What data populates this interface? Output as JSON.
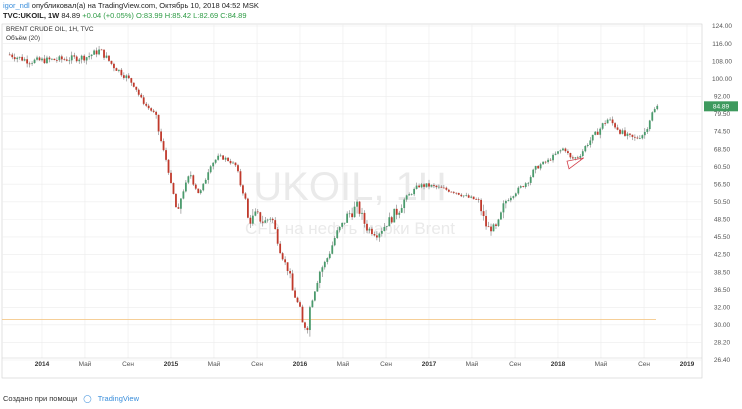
{
  "header": {
    "author": "igor_ndl",
    "published_text": "опубликовал(а) на TradingView.com, Октябрь 10, 2018 04:52 MSK",
    "symbol_line": {
      "symbol": "TVC:UKOIL, 1W",
      "last": "84.89",
      "change": "+0.04 (+0.05%)",
      "ohlc": "O:83.99 H:85.42 L:82.69 C:84.89"
    }
  },
  "chart_data": {
    "type": "candlestick",
    "legend": {
      "title": "BRENT CRUDE OIL, 1H, TVC",
      "indicator": "Объём (20)"
    },
    "watermark": {
      "big": "UKOIL, 1H",
      "small": "CFD на нефть марки Brent"
    },
    "y_ticks": [
      "124.00",
      "116.00",
      "108.00",
      "100.00",
      "92.00",
      "79.50",
      "74.50",
      "68.50",
      "60.50",
      "56.50",
      "50.50",
      "48.50",
      "45.50",
      "42.50",
      "38.50",
      "36.50",
      "32.00",
      "30.00",
      "28.20",
      "26.40"
    ],
    "y_tick_values": [
      124,
      116,
      108,
      100,
      92,
      79.5,
      74.5,
      68.5,
      60.5,
      56.5,
      50.5,
      48.5,
      45.5,
      42.5,
      38.5,
      36.5,
      32,
      30,
      28.2,
      26.4
    ],
    "x_ticks": [
      {
        "label": "2014",
        "t": 0.0,
        "major": true
      },
      {
        "label": "Май",
        "t": 0.333,
        "major": false
      },
      {
        "label": "Сен",
        "t": 0.667,
        "major": false
      },
      {
        "label": "2015",
        "t": 1.0,
        "major": true
      },
      {
        "label": "Май",
        "t": 1.333,
        "major": false
      },
      {
        "label": "Сен",
        "t": 1.667,
        "major": false
      },
      {
        "label": "2016",
        "t": 2.0,
        "major": true
      },
      {
        "label": "Май",
        "t": 2.333,
        "major": false
      },
      {
        "label": "Сен",
        "t": 2.667,
        "major": false
      },
      {
        "label": "2017",
        "t": 3.0,
        "major": true
      },
      {
        "label": "Май",
        "t": 3.333,
        "major": false
      },
      {
        "label": "Сен",
        "t": 3.667,
        "major": false
      },
      {
        "label": "2018",
        "t": 4.0,
        "major": true
      },
      {
        "label": "Май",
        "t": 4.333,
        "major": false
      },
      {
        "label": "Сен",
        "t": 4.667,
        "major": false
      },
      {
        "label": "2019",
        "t": 5.0,
        "major": true
      }
    ],
    "last_price_label": "84.89",
    "last_price": 84.89,
    "support_level": 30.6,
    "series_anchor_points": [
      {
        "t": -0.25,
        "p": 111
      },
      {
        "t": -0.1,
        "p": 108
      },
      {
        "t": 0.05,
        "p": 108.5
      },
      {
        "t": 0.2,
        "p": 109
      },
      {
        "t": 0.35,
        "p": 110
      },
      {
        "t": 0.45,
        "p": 113
      },
      {
        "t": 0.55,
        "p": 106
      },
      {
        "t": 0.65,
        "p": 101
      },
      {
        "t": 0.72,
        "p": 97
      },
      {
        "t": 0.8,
        "p": 86
      },
      {
        "t": 0.88,
        "p": 79
      },
      {
        "t": 0.94,
        "p": 68
      },
      {
        "t": 1.0,
        "p": 56
      },
      {
        "t": 1.05,
        "p": 48
      },
      {
        "t": 1.1,
        "p": 55
      },
      {
        "t": 1.15,
        "p": 59
      },
      {
        "t": 1.22,
        "p": 53
      },
      {
        "t": 1.3,
        "p": 61
      },
      {
        "t": 1.37,
        "p": 65
      },
      {
        "t": 1.43,
        "p": 64
      },
      {
        "t": 1.5,
        "p": 61
      },
      {
        "t": 1.55,
        "p": 55
      },
      {
        "t": 1.6,
        "p": 48
      },
      {
        "t": 1.66,
        "p": 49
      },
      {
        "t": 1.72,
        "p": 48
      },
      {
        "t": 1.78,
        "p": 49
      },
      {
        "t": 1.85,
        "p": 43
      },
      {
        "t": 1.92,
        "p": 38
      },
      {
        "t": 1.97,
        "p": 34
      },
      {
        "t": 2.02,
        "p": 30
      },
      {
        "t": 2.06,
        "p": 30
      },
      {
        "t": 2.12,
        "p": 37
      },
      {
        "t": 2.2,
        "p": 41
      },
      {
        "t": 2.28,
        "p": 46
      },
      {
        "t": 2.37,
        "p": 49
      },
      {
        "t": 2.45,
        "p": 50
      },
      {
        "t": 2.52,
        "p": 47
      },
      {
        "t": 2.6,
        "p": 46
      },
      {
        "t": 2.68,
        "p": 48
      },
      {
        "t": 2.78,
        "p": 50
      },
      {
        "t": 2.85,
        "p": 53
      },
      {
        "t": 2.92,
        "p": 56
      },
      {
        "t": 3.0,
        "p": 56
      },
      {
        "t": 3.1,
        "p": 55
      },
      {
        "t": 3.2,
        "p": 54
      },
      {
        "t": 3.3,
        "p": 52
      },
      {
        "t": 3.38,
        "p": 51
      },
      {
        "t": 3.45,
        "p": 47
      },
      {
        "t": 3.52,
        "p": 47
      },
      {
        "t": 3.6,
        "p": 51
      },
      {
        "t": 3.7,
        "p": 55
      },
      {
        "t": 3.78,
        "p": 58
      },
      {
        "t": 3.85,
        "p": 61
      },
      {
        "t": 3.92,
        "p": 63
      },
      {
        "t": 4.0,
        "p": 67
      },
      {
        "t": 4.05,
        "p": 69
      },
      {
        "t": 4.1,
        "p": 64
      },
      {
        "t": 4.16,
        "p": 65
      },
      {
        "t": 4.22,
        "p": 70
      },
      {
        "t": 4.3,
        "p": 74
      },
      {
        "t": 4.38,
        "p": 78
      },
      {
        "t": 4.45,
        "p": 76
      },
      {
        "t": 4.52,
        "p": 73
      },
      {
        "t": 4.6,
        "p": 72
      },
      {
        "t": 4.67,
        "p": 74
      },
      {
        "t": 4.72,
        "p": 79
      },
      {
        "t": 4.77,
        "p": 85
      }
    ]
  },
  "footer": {
    "created_with": "Создано при помощи",
    "brand": "TradingView"
  },
  "colors": {
    "up": "#4a9a6c",
    "down": "#c0392b",
    "grid": "#ececec",
    "support_line": "#f5c88a",
    "last_price_bg": "#3e9a5e",
    "triangle": "#d33f49"
  }
}
